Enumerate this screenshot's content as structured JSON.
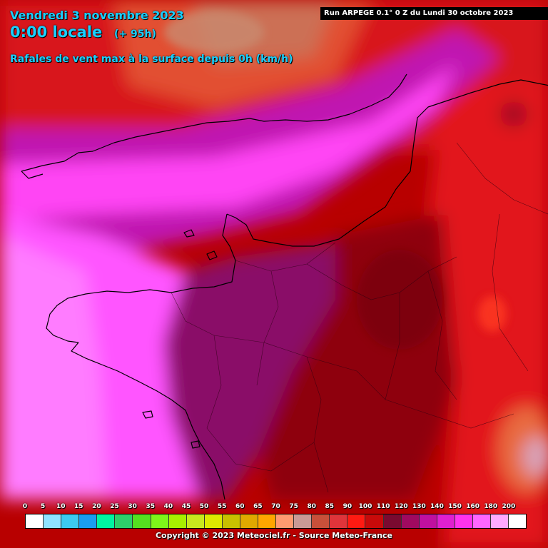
{
  "header": {
    "date": "Vendredi 3 novembre 2023",
    "time": "0:00 locale",
    "lead": "(+ 95h)",
    "subtitle": "Rafales de vent max à la surface depuis 0h (km/h)",
    "run": "Run ARPEGE 0.1° 0 Z du Lundi 30 octobre 2023"
  },
  "legend": {
    "labels": [
      "0",
      "5",
      "10",
      "15",
      "20",
      "25",
      "30",
      "35",
      "40",
      "45",
      "50",
      "55",
      "60",
      "65",
      "70",
      "75",
      "80",
      "85",
      "90",
      "100",
      "110",
      "120",
      "130",
      "140",
      "150",
      "160",
      "180",
      "200"
    ],
    "colors": [
      "#ffffff",
      "#8fe3ff",
      "#3ccaf0",
      "#1a9ef0",
      "#00f5a0",
      "#2dd06a",
      "#55e020",
      "#7ef51a",
      "#a8f000",
      "#c8e81e",
      "#dde800",
      "#c8c000",
      "#e0a800",
      "#ffa600",
      "#ff9b70",
      "#c99a95",
      "#c8503a",
      "#e0343a",
      "#ff1a12",
      "#c80a0a",
      "#7a0a30",
      "#a00a60",
      "#c010a0",
      "#e020d0",
      "#ff33ee",
      "#ff66ff",
      "#ffaaff",
      "#ffffff"
    ]
  },
  "footer": {
    "copyright": "Copyright © 2023 Meteociel.fr - Source Meteo-France"
  }
}
